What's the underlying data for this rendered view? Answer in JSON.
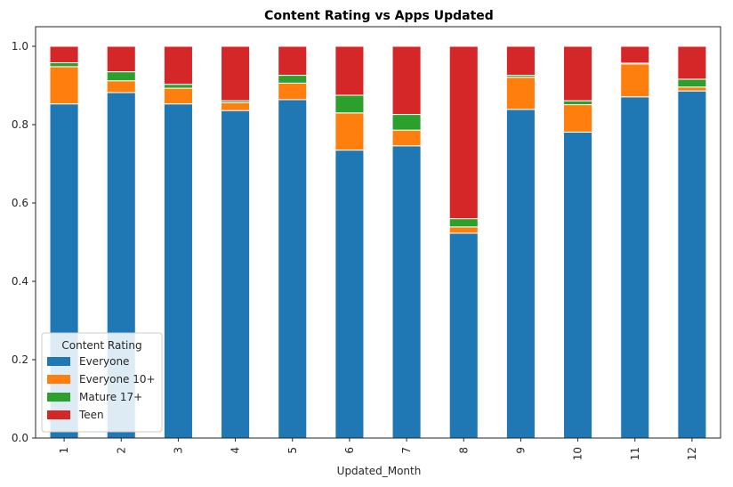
{
  "chart_data": {
    "type": "bar",
    "stacked": true,
    "title": "Content Rating vs Apps Updated",
    "xlabel": "Updated_Month",
    "ylabel": "",
    "ylim": [
      0,
      1.05
    ],
    "yticks": [
      "0.0",
      "0.2",
      "0.4",
      "0.6",
      "0.8",
      "1.0"
    ],
    "categories": [
      "1",
      "2",
      "3",
      "4",
      "5",
      "6",
      "7",
      "8",
      "9",
      "10",
      "11",
      "12"
    ],
    "grid": false,
    "legend": {
      "title": "Content Rating",
      "placement": "lower-left"
    },
    "series": [
      {
        "name": "Everyone",
        "color": "#1f77b4",
        "values": [
          0.853,
          0.882,
          0.853,
          0.836,
          0.864,
          0.735,
          0.746,
          0.523,
          0.839,
          0.781,
          0.871,
          0.886
        ]
      },
      {
        "name": "Everyone 10+",
        "color": "#ff7f0e",
        "values": [
          0.095,
          0.03,
          0.04,
          0.02,
          0.042,
          0.095,
          0.04,
          0.016,
          0.082,
          0.07,
          0.084,
          0.01
        ]
      },
      {
        "name": "Mature 17+",
        "color": "#2ca02c",
        "values": [
          0.01,
          0.023,
          0.01,
          0.005,
          0.02,
          0.045,
          0.04,
          0.021,
          0.005,
          0.01,
          0.002,
          0.02
        ]
      },
      {
        "name": "Teen",
        "color": "#d62728",
        "values": [
          0.042,
          0.065,
          0.097,
          0.139,
          0.074,
          0.125,
          0.174,
          0.44,
          0.074,
          0.139,
          0.043,
          0.084
        ]
      }
    ]
  }
}
